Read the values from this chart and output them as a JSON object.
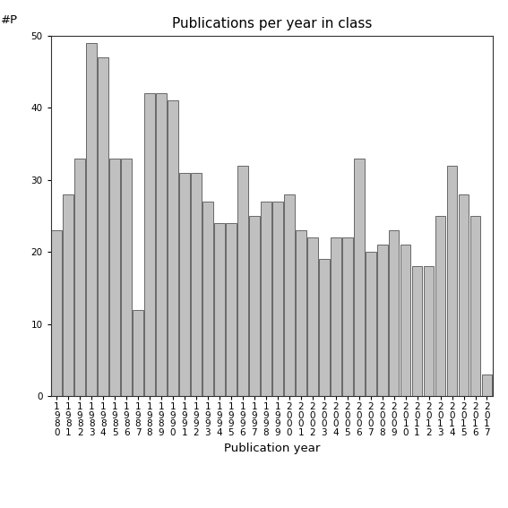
{
  "title": "Publications per year in class",
  "xlabel": "Publication year",
  "ylabel": "#P",
  "years": [
    1980,
    1981,
    1982,
    1983,
    1984,
    1985,
    1986,
    1987,
    1988,
    1989,
    1990,
    1991,
    1992,
    1993,
    1994,
    1995,
    1996,
    1997,
    1998,
    1999,
    2000,
    2001,
    2002,
    2003,
    2004,
    2005,
    2006,
    2007,
    2008,
    2009,
    2010,
    2011,
    2012,
    2013,
    2014,
    2015,
    2016,
    2017
  ],
  "values": [
    23,
    28,
    33,
    49,
    47,
    33,
    33,
    12,
    42,
    42,
    41,
    31,
    31,
    27,
    24,
    24,
    32,
    25,
    27,
    27,
    28,
    23,
    22,
    19,
    22,
    22,
    33,
    20,
    21,
    23,
    21,
    18,
    18,
    25,
    32,
    28,
    25,
    3
  ],
  "bar_color": "#c0c0c0",
  "bar_edge_color": "#555555",
  "ylim": [
    0,
    50
  ],
  "yticks": [
    0,
    10,
    20,
    30,
    40,
    50
  ],
  "background_color": "#ffffff",
  "title_fontsize": 11,
  "label_fontsize": 9.5,
  "tick_fontsize": 7.5
}
